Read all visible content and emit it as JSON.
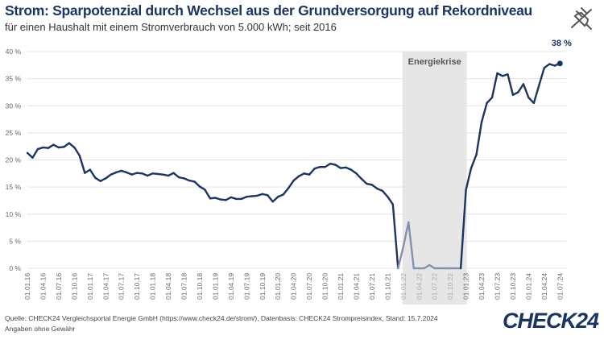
{
  "header": {
    "title": "Strom: Sparpotenzial durch Wechsel aus der Grundversorgung auf Rekordniveau",
    "subtitle": "für einen Haushalt mit einem Stromverbrauch von 5.000 kWh; seit 2016",
    "icon": "power-plug-icon"
  },
  "footer": {
    "source": "Quelle: CHECK24 Vergleichsportal Energie GmbH (https://www.check24.de/strom/), Datenbasis: CHECK24 Strompreisindex, Stand: 15.7.2024",
    "disclaimer": "Angaben ohne Gewähr",
    "logo": "CHECK24"
  },
  "chart_data": {
    "type": "line",
    "title": "",
    "xlabel": "",
    "ylabel": "",
    "ylim": [
      0,
      40
    ],
    "yticks": [
      "0 %",
      "5 %",
      "10 %",
      "15 %",
      "20 %",
      "25 %",
      "30 %",
      "35 %",
      "40 %"
    ],
    "xticks": [
      "01.01.16",
      "01.04.16",
      "01.07.16",
      "01.10.16",
      "01.01.17",
      "01.04.17",
      "01.07.17",
      "01.10.17",
      "01.01.18",
      "01.04.18",
      "01.07.18",
      "01.10.18",
      "01.01.19",
      "01.04.19",
      "01.07.19",
      "01.10.19",
      "01.01.20",
      "01.04.20",
      "01.07.20",
      "01.10.20",
      "01.01.21",
      "01.04.21",
      "01.07.21",
      "01.10.21",
      "01.01.22",
      "01.04.22",
      "01.07.22",
      "01.10.22",
      "01.01.23",
      "01.04.23",
      "01.07.23",
      "01.10.23",
      "01.01.24",
      "01.04.24",
      "01.07.24"
    ],
    "grid": true,
    "highlight": {
      "label": "Energiekrise",
      "from": "01.01.22",
      "to": "01.01.23",
      "color": "#e6e6e6"
    },
    "end_label": "38 %",
    "line_color": "#1b3563",
    "highlight_line_color": "#8391ad",
    "x_start": "01.01.16",
    "x_interval": "monthly",
    "values": [
      21.3,
      20.4,
      22.0,
      22.3,
      22.2,
      22.8,
      22.3,
      22.4,
      23.1,
      22.3,
      20.8,
      17.6,
      18.2,
      16.7,
      16.1,
      16.6,
      17.3,
      17.7,
      18.0,
      17.7,
      17.3,
      17.6,
      17.5,
      17.1,
      17.5,
      17.4,
      17.3,
      17.1,
      17.6,
      16.8,
      16.6,
      16.2,
      16.0,
      15.1,
      14.5,
      12.9,
      13.0,
      12.7,
      12.6,
      13.1,
      12.8,
      12.8,
      13.2,
      13.3,
      13.4,
      13.7,
      13.5,
      12.3,
      13.2,
      13.6,
      14.8,
      16.2,
      17.0,
      17.5,
      17.3,
      18.4,
      18.7,
      18.7,
      19.3,
      19.1,
      18.5,
      18.6,
      18.2,
      17.5,
      16.5,
      15.6,
      15.4,
      14.7,
      14.3,
      13.2,
      11.8,
      0,
      4.0,
      8.5,
      0,
      0,
      0,
      0.6,
      0,
      0,
      0,
      0,
      0,
      0,
      14.5,
      18.5,
      21.0,
      27.0,
      30.5,
      31.5,
      36.0,
      35.5,
      35.8,
      32.0,
      32.5,
      34.0,
      31.5,
      30.5,
      33.8,
      37.0,
      37.7,
      37.4,
      37.8
    ]
  }
}
